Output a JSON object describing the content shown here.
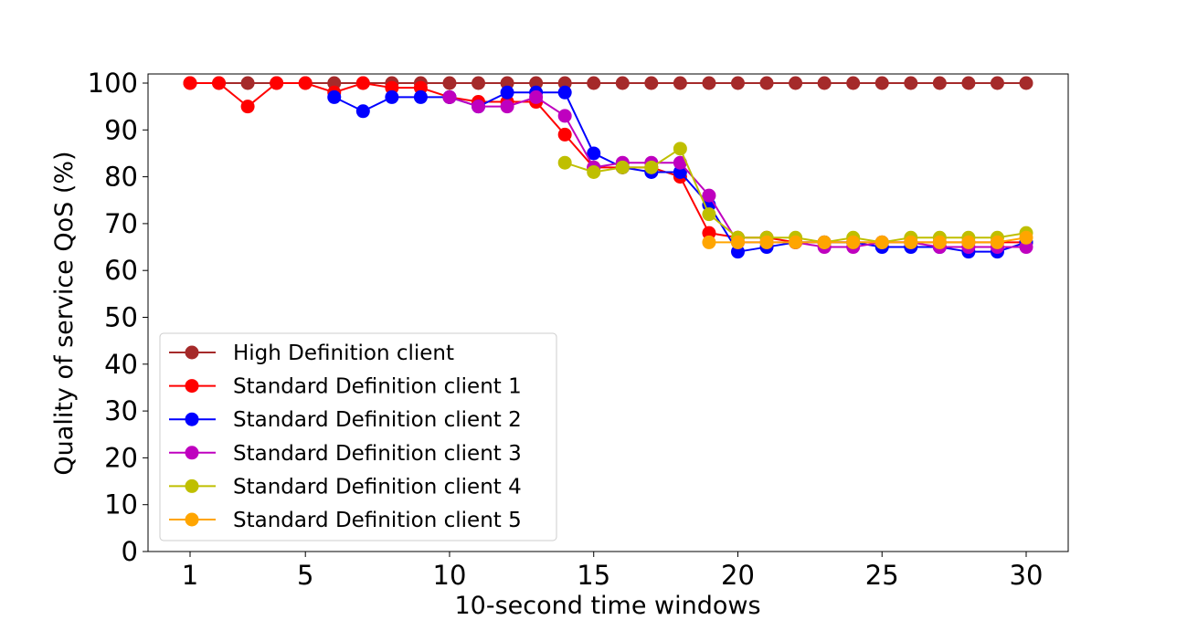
{
  "chart_data": {
    "type": "line",
    "title": "",
    "xlabel": "10-second time windows",
    "ylabel": "Quality of service QoS (%)",
    "xlim": [
      1,
      30
    ],
    "ylim": [
      0,
      100
    ],
    "x_ticks": [
      "1",
      "5",
      "10",
      "15",
      "20",
      "25",
      "30"
    ],
    "y_ticks": [
      "0",
      "10",
      "20",
      "30",
      "40",
      "50",
      "60",
      "70",
      "80",
      "90",
      "100"
    ],
    "grid": false,
    "legend_position": "lower-left",
    "series": [
      {
        "name": "High Definition client",
        "color": "#a52a2a",
        "x": [
          1,
          2,
          3,
          4,
          5,
          6,
          7,
          8,
          9,
          10,
          11,
          12,
          13,
          14,
          15,
          16,
          17,
          18,
          19,
          20,
          21,
          22,
          23,
          24,
          25,
          26,
          27,
          28,
          29,
          30
        ],
        "y": [
          100,
          100,
          100,
          100,
          100,
          100,
          100,
          100,
          100,
          100,
          100,
          100,
          100,
          100,
          100,
          100,
          100,
          100,
          100,
          100,
          100,
          100,
          100,
          100,
          100,
          100,
          100,
          100,
          100,
          100
        ]
      },
      {
        "name": "Standard Definition client 1",
        "color": "#ff0000",
        "x": [
          1,
          2,
          3,
          4,
          5,
          6,
          7,
          8,
          9,
          10,
          11,
          12,
          13,
          14,
          15,
          16,
          17,
          18,
          19,
          20,
          21,
          22,
          23,
          24,
          25,
          26,
          27,
          28,
          29,
          30
        ],
        "y": [
          100,
          100,
          95,
          100,
          100,
          98,
          100,
          99,
          99,
          97,
          96,
          96,
          96,
          89,
          82,
          82,
          82,
          80,
          68,
          67,
          67,
          66,
          66,
          66,
          66,
          66,
          66,
          66,
          66,
          66
        ]
      },
      {
        "name": "Standard Definition client 2",
        "color": "#0000ff",
        "x": [
          6,
          7,
          8,
          9,
          10,
          11,
          12,
          13,
          14,
          15,
          16,
          17,
          18,
          19,
          20,
          21,
          22,
          23,
          24,
          25,
          26,
          27,
          28,
          29,
          30
        ],
        "y": [
          97,
          94,
          97,
          97,
          97,
          95,
          98,
          98,
          98,
          85,
          82,
          81,
          81,
          74,
          64,
          65,
          66,
          66,
          66,
          65,
          65,
          65,
          64,
          64,
          66
        ]
      },
      {
        "name": "Standard Definition client 3",
        "color": "#bf00bf",
        "x": [
          10,
          11,
          12,
          13,
          14,
          15,
          16,
          17,
          18,
          19,
          20,
          21,
          22,
          23,
          24,
          25,
          26,
          27,
          28,
          29,
          30
        ],
        "y": [
          97,
          95,
          95,
          97,
          93,
          82,
          83,
          83,
          83,
          76,
          66,
          66,
          66,
          65,
          65,
          66,
          66,
          65,
          65,
          65,
          65
        ]
      },
      {
        "name": "Standard Definition client 4",
        "color": "#bfbf00",
        "x": [
          14,
          15,
          16,
          17,
          18,
          19,
          20,
          21,
          22,
          23,
          24,
          25,
          26,
          27,
          28,
          29,
          30
        ],
        "y": [
          83,
          81,
          82,
          82,
          86,
          72,
          67,
          67,
          67,
          66,
          67,
          66,
          67,
          67,
          67,
          67,
          68
        ]
      },
      {
        "name": "Standard Definition client 5",
        "color": "#ffa500",
        "x": [
          19,
          20,
          21,
          22,
          23,
          24,
          25,
          26,
          27,
          28,
          29,
          30
        ],
        "y": [
          66,
          66,
          66,
          66,
          66,
          66,
          66,
          66,
          66,
          66,
          66,
          67
        ]
      }
    ]
  }
}
